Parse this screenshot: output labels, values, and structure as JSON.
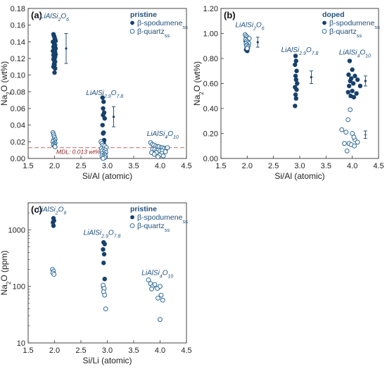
{
  "chart_data": [
    {
      "id": "a",
      "type": "scatter",
      "panel_label": "(a)",
      "xlabel": "Si/Al (atomic)",
      "ylabel_main": "Na",
      "ylabel_sub": "2",
      "ylabel_tail": "O (wt%)",
      "xlim": [
        1.5,
        4.5
      ],
      "ylim": [
        0,
        0.18
      ],
      "xticks": [
        "1.5",
        "2.0",
        "2.5",
        "3.0",
        "3.5",
        "4.0",
        "4.5"
      ],
      "yticks": [
        "0.00",
        "0.02",
        "0.04",
        "0.06",
        "0.08",
        "0.10",
        "0.12",
        "0.14",
        "0.16",
        "0.18"
      ],
      "legend": {
        "title": "pristine",
        "entries": [
          {
            "main": "β-spodumene",
            "sub": "ss"
          },
          {
            "main": "β-quartz",
            "sub": "ss"
          }
        ]
      },
      "annotations": [
        {
          "x": 2.0,
          "y": 0.168,
          "parts": [
            [
              "LiAlSi",
              "b"
            ],
            [
              "2",
              "sub"
            ],
            [
              "O",
              "b"
            ],
            [
              "6",
              "sub"
            ]
          ]
        },
        {
          "x": 2.95,
          "y": 0.076,
          "parts": [
            [
              "LiAlSi",
              "b"
            ],
            [
              "2.9",
              "sub"
            ],
            [
              "O",
              "b"
            ],
            [
              "7.8",
              "sub"
            ]
          ]
        },
        {
          "x": 4.05,
          "y": 0.027,
          "parts": [
            [
              "LiAlSi",
              "b"
            ],
            [
              "4",
              "sub"
            ],
            [
              "O",
              "b"
            ],
            [
              "10",
              "sub"
            ]
          ]
        }
      ],
      "mdl": {
        "y": 0.013,
        "label": "MDL: 0.013 wt%"
      },
      "series": [
        {
          "kind": "filled",
          "x": [
            1.98,
            1.99,
            2.0,
            2.01,
            2.02,
            1.97,
            1.99,
            2.0,
            2.01,
            2.0,
            1.98,
            2.01,
            2.02,
            1.99,
            2.0,
            1.97,
            2.01,
            2.0,
            1.99,
            2.02,
            1.98,
            2.0,
            2.01,
            1.99,
            2.0,
            1.98,
            2.0,
            2.01,
            2.0,
            1.99,
            2.0,
            1.98,
            2.01,
            2.0
          ],
          "y": [
            0.149,
            0.147,
            0.145,
            0.143,
            0.141,
            0.14,
            0.138,
            0.137,
            0.136,
            0.135,
            0.134,
            0.133,
            0.132,
            0.131,
            0.13,
            0.129,
            0.128,
            0.127,
            0.126,
            0.125,
            0.124,
            0.123,
            0.122,
            0.121,
            0.12,
            0.119,
            0.117,
            0.116,
            0.115,
            0.113,
            0.112,
            0.11,
            0.108,
            0.103
          ]
        },
        {
          "kind": "open",
          "x": [
            1.97,
            1.98,
            1.99,
            2.0,
            2.01,
            1.98,
            2.0,
            1.97,
            2.01,
            1.99,
            2.0,
            1.98,
            2.0,
            2.01
          ],
          "y": [
            0.031,
            0.029,
            0.027,
            0.025,
            0.023,
            0.022,
            0.021,
            0.02,
            0.019,
            0.018,
            0.017,
            0.016,
            0.015,
            0.014
          ]
        },
        {
          "kind": "filled",
          "x": [
            2.91,
            2.93,
            2.92,
            2.94,
            2.92,
            2.95,
            2.91,
            2.93,
            2.92,
            2.94,
            2.93,
            2.94,
            2.92
          ],
          "y": [
            0.073,
            0.068,
            0.06,
            0.055,
            0.052,
            0.048,
            0.04,
            0.031,
            0.03,
            0.022,
            0.019,
            0.016,
            0.013
          ]
        },
        {
          "kind": "open",
          "x": [
            2.88,
            2.9,
            2.92,
            2.95,
            2.98,
            2.89,
            2.93,
            2.96,
            2.9,
            2.94,
            2.97,
            2.91,
            2.95,
            2.93,
            2.9,
            2.96,
            2.93,
            2.95,
            2.92
          ],
          "y": [
            0.02,
            0.018,
            0.016,
            0.015,
            0.013,
            0.012,
            0.011,
            0.01,
            0.009,
            0.008,
            0.007,
            0.006,
            0.005,
            0.004,
            0.003,
            0.003,
            0.002,
            0.001,
            0.0
          ]
        },
        {
          "kind": "open",
          "x": [
            3.82,
            3.85,
            3.88,
            3.92,
            3.95,
            3.98,
            4.02,
            4.05,
            4.08,
            4.12,
            3.86,
            3.9,
            3.94,
            3.97,
            4.0,
            4.04,
            4.1,
            3.84,
            3.93,
            4.03,
            4.14,
            3.89,
            3.99,
            4.06,
            3.96
          ],
          "y": [
            0.019,
            0.017,
            0.016,
            0.015,
            0.014,
            0.014,
            0.013,
            0.013,
            0.012,
            0.012,
            0.011,
            0.011,
            0.01,
            0.01,
            0.009,
            0.009,
            0.008,
            0.007,
            0.007,
            0.006,
            0.013,
            0.005,
            0.004,
            0.003,
            0.002
          ]
        }
      ],
      "errorbars": [
        {
          "x": 2.22,
          "y": 0.132,
          "err": 0.018,
          "mark": "filled"
        },
        {
          "x": 3.12,
          "y": 0.05,
          "err": 0.012,
          "mark": "filled"
        }
      ]
    },
    {
      "id": "b",
      "type": "scatter",
      "panel_label": "(b)",
      "xlabel": "Si/Al (atomic)",
      "ylabel_main": "Na",
      "ylabel_sub": "2",
      "ylabel_tail": "O (wt%)",
      "xlim": [
        1.5,
        4.5
      ],
      "ylim": [
        0,
        1.2
      ],
      "xticks": [
        "1.5",
        "2.0",
        "2.5",
        "3.0",
        "3.5",
        "4.0",
        "4.5"
      ],
      "yticks": [
        "0.00",
        "0.20",
        "0.40",
        "0.60",
        "0.80",
        "1.00",
        "1.20"
      ],
      "legend": {
        "title": "doped",
        "entries": [
          {
            "main": "β-spodumene",
            "sub": "ss"
          },
          {
            "main": "β-quartz",
            "sub": "ss"
          }
        ]
      },
      "annotations": [
        {
          "x": 2.05,
          "y": 1.05,
          "parts": [
            [
              "LiAlSi",
              "b"
            ],
            [
              "2",
              "sub"
            ],
            [
              "O",
              "b"
            ],
            [
              "6",
              "sub"
            ]
          ]
        },
        {
          "x": 3.0,
          "y": 0.85,
          "parts": [
            [
              "LiAlSi",
              "b"
            ],
            [
              "2.9",
              "sub"
            ],
            [
              "O",
              "b"
            ],
            [
              "7.8",
              "sub"
            ]
          ]
        },
        {
          "x": 4.05,
          "y": 0.83,
          "parts": [
            [
              "LiAlSi",
              "b"
            ],
            [
              "4",
              "sub"
            ],
            [
              "O",
              "b"
            ],
            [
              "10",
              "sub"
            ]
          ]
        }
      ],
      "mdl": null,
      "series": [
        {
          "kind": "filled",
          "x": [
            1.98,
            2.0,
            2.02,
            1.97,
            2.01,
            1.99,
            2.0,
            1.98,
            2.02,
            2.0,
            1.99,
            2.01,
            2.0,
            1.98,
            2.0
          ],
          "y": [
            0.97,
            0.96,
            0.95,
            0.94,
            0.93,
            0.93,
            0.92,
            0.91,
            0.91,
            0.9,
            0.89,
            0.88,
            0.88,
            0.87,
            0.86
          ]
        },
        {
          "kind": "open",
          "x": [
            1.96,
            1.98,
            2.0,
            2.02,
            2.04,
            1.97,
            1.99,
            2.01,
            2.03,
            1.98,
            2.0,
            2.02,
            1.99,
            2.01,
            2.0
          ],
          "y": [
            0.99,
            0.98,
            0.97,
            0.96,
            0.96,
            0.95,
            0.94,
            0.93,
            0.92,
            0.92,
            0.91,
            0.9,
            0.9,
            0.89,
            0.88
          ]
        },
        {
          "kind": "filled",
          "x": [
            2.92,
            2.93,
            2.91,
            2.94,
            2.92,
            2.93,
            2.95,
            2.91,
            2.94,
            2.92,
            2.93,
            2.91
          ],
          "y": [
            0.82,
            0.78,
            0.75,
            0.7,
            0.66,
            0.63,
            0.6,
            0.57,
            0.55,
            0.51,
            0.48,
            0.42
          ]
        },
        {
          "kind": "filled",
          "x": [
            3.95,
            4.0,
            3.93,
            4.05,
            3.98,
            4.1,
            3.96,
            4.02,
            3.94,
            4.15,
            4.0,
            3.92,
            4.08,
            3.97,
            4.03
          ],
          "y": [
            0.78,
            0.71,
            0.67,
            0.66,
            0.64,
            0.63,
            0.62,
            0.6,
            0.58,
            0.58,
            0.54,
            0.53,
            0.52,
            0.5,
            0.49
          ]
        },
        {
          "kind": "open",
          "x": [
            3.8,
            3.88,
            3.92,
            3.96,
            4.0,
            4.05,
            3.85,
            3.94,
            4.03,
            3.98,
            3.9,
            4.1,
            4.04
          ],
          "y": [
            0.23,
            0.21,
            0.31,
            0.39,
            0.2,
            0.15,
            0.12,
            0.12,
            0.17,
            0.11,
            0.06,
            0.13,
            0.1
          ]
        }
      ],
      "errorbars": [
        {
          "x": 2.2,
          "y": 0.93,
          "err": 0.04,
          "mark": "filled"
        },
        {
          "x": 3.22,
          "y": 0.65,
          "err": 0.05,
          "mark": "filled"
        },
        {
          "x": 4.25,
          "y": 0.62,
          "err": 0.04,
          "mark": "filled"
        },
        {
          "x": 4.25,
          "y": 0.19,
          "err": 0.03,
          "mark": "open"
        }
      ]
    },
    {
      "id": "c",
      "type": "scatter",
      "scale_y": "log",
      "panel_label": "(c)",
      "xlabel": "Si/Li (atomic)",
      "ylabel_main": "Na",
      "ylabel_sub": "2",
      "ylabel_tail": "O (ppm)",
      "xlim": [
        1.5,
        4.5
      ],
      "ylim": [
        10,
        3000
      ],
      "xticks": [
        "1.5",
        "2.0",
        "2.5",
        "3.0",
        "3.5",
        "4.0",
        "4.5"
      ],
      "yticks": [
        "10",
        "100",
        "1000"
      ],
      "legend": {
        "title": "pristine",
        "entries": [
          {
            "main": "β-spodumene",
            "sub": "ss"
          },
          {
            "main": "β-quartz",
            "sub": "ss"
          }
        ]
      },
      "annotations": [
        {
          "x": 1.95,
          "y": 2100,
          "parts": [
            [
              "LiAlSi",
              "b"
            ],
            [
              "2",
              "sub"
            ],
            [
              "O",
              "b"
            ],
            [
              "6",
              "sub"
            ]
          ]
        },
        {
          "x": 2.9,
          "y": 820,
          "parts": [
            [
              "LiAlSi",
              "b"
            ],
            [
              "2.9",
              "sub"
            ],
            [
              "O",
              "b"
            ],
            [
              "7.8",
              "sub"
            ]
          ]
        },
        {
          "x": 3.95,
          "y": 160,
          "parts": [
            [
              "LiAlSi",
              "b"
            ],
            [
              "4",
              "sub"
            ],
            [
              "O",
              "b"
            ],
            [
              "10",
              "sub"
            ]
          ]
        }
      ],
      "mdl": null,
      "series": [
        {
          "kind": "filled",
          "x": [
            1.98,
            1.99,
            1.97,
            1.98
          ],
          "y": [
            1600,
            1450,
            1350,
            1180
          ]
        },
        {
          "kind": "open",
          "x": [
            1.96,
            1.98,
            1.97,
            1.99
          ],
          "y": [
            200,
            185,
            172,
            163
          ]
        },
        {
          "kind": "filled",
          "x": [
            2.93,
            2.95,
            2.92,
            2.94,
            2.93,
            2.95,
            2.93
          ],
          "y": [
            600,
            560,
            450,
            370,
            260,
            135,
            95
          ]
        },
        {
          "kind": "open",
          "x": [
            2.92,
            2.94,
            2.93,
            2.95,
            2.97
          ],
          "y": [
            105,
            92,
            80,
            70,
            40
          ]
        },
        {
          "kind": "open",
          "x": [
            3.78,
            3.82,
            3.86,
            3.84,
            3.9,
            3.95,
            4.0,
            4.02,
            3.96,
            4.05,
            4.0
          ],
          "y": [
            130,
            112,
            100,
            90,
            108,
            92,
            100,
            70,
            62,
            57,
            26
          ]
        }
      ],
      "errorbars": []
    }
  ]
}
